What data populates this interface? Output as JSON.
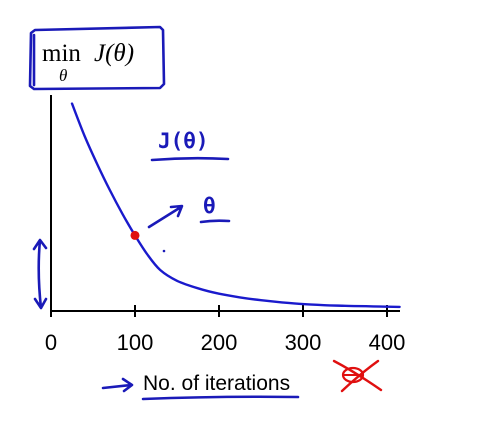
{
  "formula": {
    "operator": "min",
    "subscript": "θ",
    "function": "J(θ)"
  },
  "annotations": {
    "cost_label": "J(θ)",
    "param_label": "θ"
  },
  "colors": {
    "ink": "#1a1ab8",
    "curve": "#1a1acc",
    "marker": "#e01010",
    "cross_out": "#e01010",
    "axis": "#000000"
  },
  "chart_data": {
    "type": "line",
    "title": "",
    "xlabel": "No. of iterations",
    "ylabel": "",
    "xlim": [
      0,
      420
    ],
    "ylim": [
      0,
      10
    ],
    "x_ticks": [
      0,
      100,
      200,
      300,
      400
    ],
    "grid": false,
    "legend": "none",
    "series": [
      {
        "x": [
          25,
          40,
          55,
          70,
          85,
          100,
          115,
          130,
          150,
          175,
          200,
          225,
          250,
          275,
          300,
          325,
          350,
          375,
          400,
          415
        ],
        "y": [
          9.6,
          8.1,
          6.8,
          5.6,
          4.5,
          3.5,
          2.6,
          1.9,
          1.4,
          1.05,
          0.8,
          0.63,
          0.5,
          0.4,
          0.32,
          0.27,
          0.24,
          0.22,
          0.2,
          0.19
        ]
      }
    ],
    "highlight_point": {
      "x": 100,
      "y": 3.5
    }
  }
}
